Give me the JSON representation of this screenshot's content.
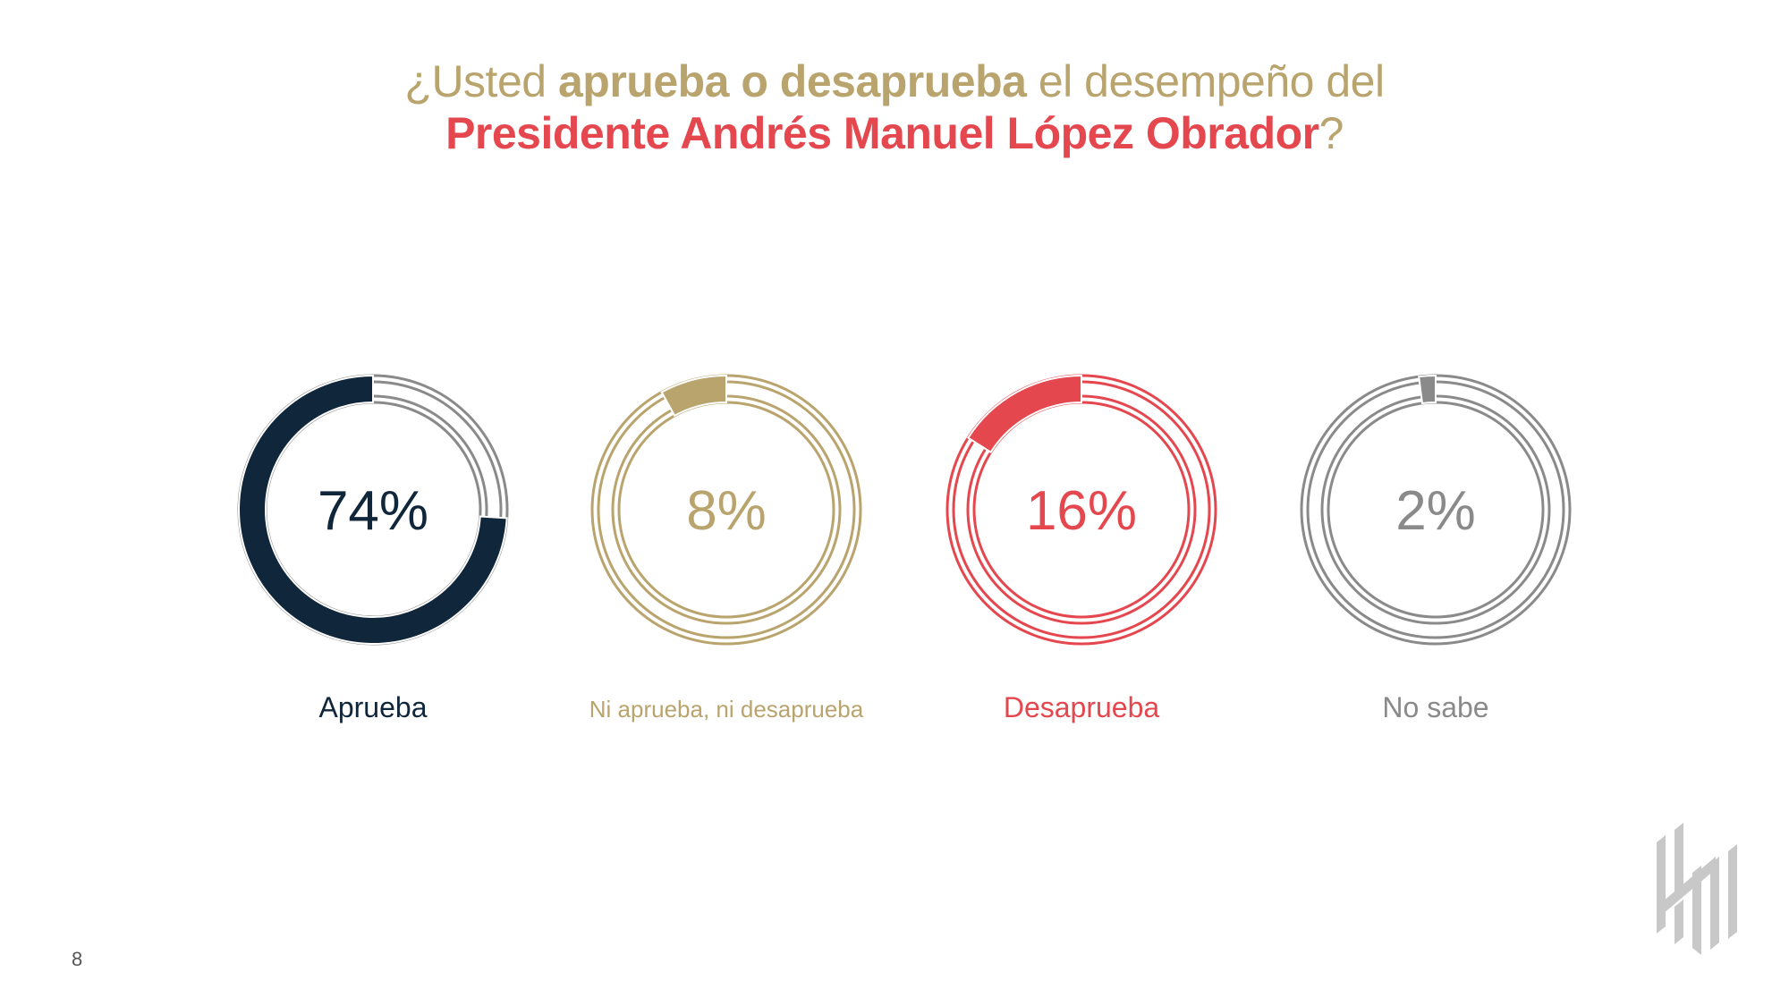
{
  "title": {
    "line1_prefix": "¿Usted ",
    "line1_bold": "aprueba o desaprueba",
    "line1_suffix": " el desempeño del",
    "line2_bold": "Presidente Andrés Manuel López Obrador",
    "line2_suffix": "?"
  },
  "chart_data": {
    "type": "pie",
    "title": "¿Usted aprueba o desaprueba el desempeño del Presidente Andrés Manuel López Obrador?",
    "categories": [
      "Aprueba",
      "Ni aprueba, ni desaprueba",
      "Desaprueba",
      "No sabe"
    ],
    "values": [
      74,
      8,
      16,
      2
    ],
    "value_labels": [
      "74%",
      "8%",
      "16%",
      "2%"
    ],
    "colors": [
      "#10263a",
      "#b9a46e",
      "#e5474f",
      "#8a8a8a"
    ],
    "style": "four separate donut gauges"
  },
  "page_number": "8",
  "logo_icon": "firm-monogram-icon"
}
